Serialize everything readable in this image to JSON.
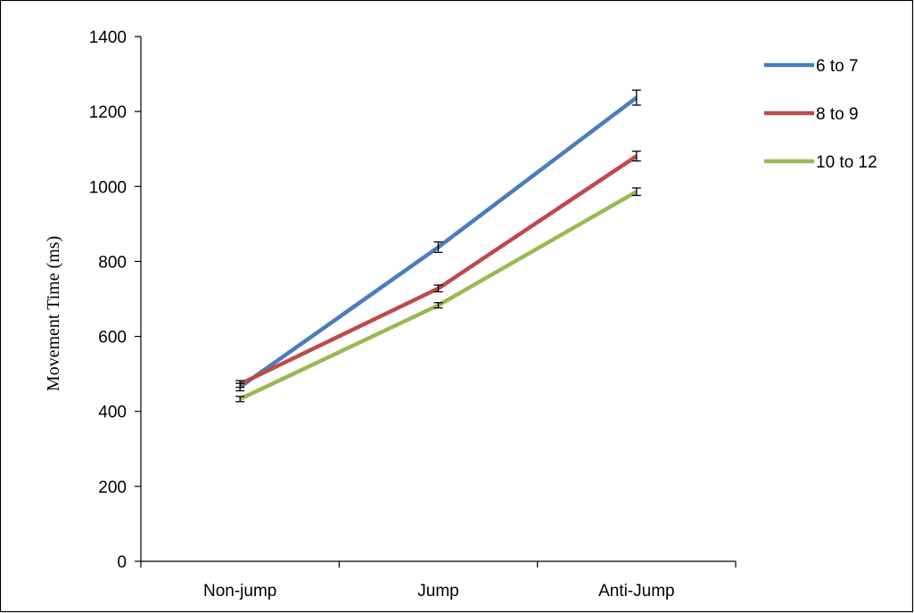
{
  "chart_data": {
    "type": "line",
    "categories": [
      "Non-jump",
      "Jump",
      "Anti-Jump"
    ],
    "series": [
      {
        "name": "6 to 7",
        "color": "#4A7EBB",
        "values": [
          465,
          838,
          1237
        ],
        "errors": [
          10,
          14,
          20
        ]
      },
      {
        "name": "8 to 9",
        "color": "#BE4B48",
        "values": [
          473,
          728,
          1081
        ],
        "errors": [
          9,
          9,
          13
        ]
      },
      {
        "name": "10 to 12",
        "color": "#98B954",
        "values": [
          433,
          683,
          986
        ],
        "errors": [
          7,
          7,
          10
        ]
      }
    ],
    "xlabel": "",
    "ylabel": "Movement Time (ms)",
    "ylim": [
      0,
      1400
    ],
    "yticks": [
      0,
      200,
      400,
      600,
      800,
      1000,
      1200,
      1400
    ],
    "grid": false,
    "legend": "right"
  }
}
